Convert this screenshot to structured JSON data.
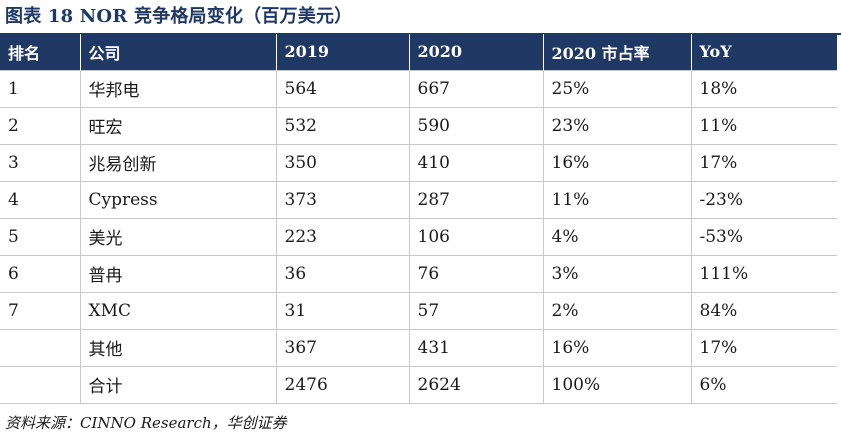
{
  "title": "图表 18   NOR 竞争格局变化（百万美元）",
  "table": {
    "headers": [
      "排名",
      "公司",
      "2019",
      "2020",
      "2020 市占率",
      "YoY"
    ],
    "rows": [
      [
        "1",
        "华邦电",
        "564",
        "667",
        "25%",
        "18%"
      ],
      [
        "2",
        "旺宏",
        "532",
        "590",
        "23%",
        "11%"
      ],
      [
        "3",
        "兆易创新",
        "350",
        "410",
        "16%",
        "17%"
      ],
      [
        "4",
        "Cypress",
        "373",
        "287",
        "11%",
        "-23%"
      ],
      [
        "5",
        "美光",
        "223",
        "106",
        "4%",
        "-53%"
      ],
      [
        "6",
        "普冉",
        "36",
        "76",
        "3%",
        "111%"
      ],
      [
        "7",
        "XMC",
        "31",
        "57",
        "2%",
        "84%"
      ],
      [
        "",
        "其他",
        "367",
        "431",
        "16%",
        "17%"
      ],
      [
        "",
        "合计",
        "2476",
        "2624",
        "100%",
        "6%"
      ]
    ]
  },
  "source": "资料来源：CINNO Research，华创证券",
  "colors": {
    "header_background": "#1f3864",
    "header_text": "#ffffff",
    "grid": "#c8c8c8"
  }
}
